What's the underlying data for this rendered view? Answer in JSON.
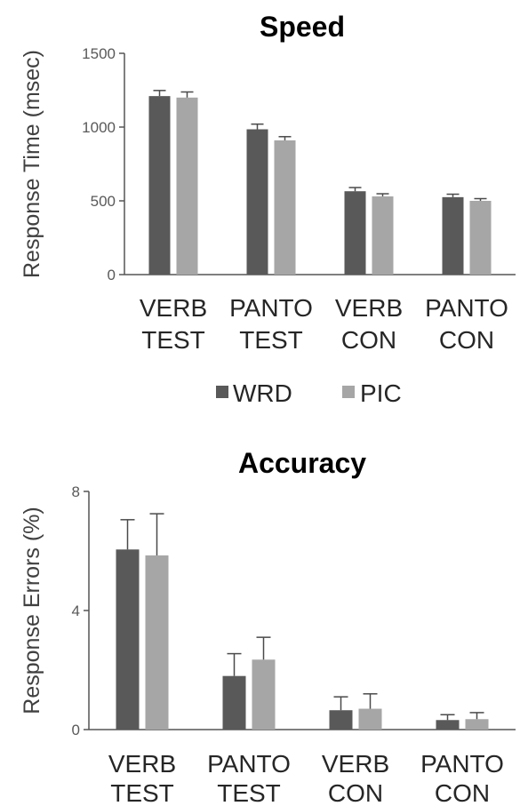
{
  "chart_data": [
    {
      "type": "bar",
      "title": "Speed",
      "ylabel": "Response Time (msec)",
      "xlabel": "",
      "ylim": [
        0,
        1500
      ],
      "yticks": [
        "0",
        "500",
        "1000",
        "1500"
      ],
      "categories": [
        [
          "VERB",
          "TEST"
        ],
        [
          "PANTO",
          "TEST"
        ],
        [
          "VERB",
          "CON"
        ],
        [
          "PANTO",
          "CON"
        ]
      ],
      "series": [
        {
          "name": "WRD",
          "color": "#595959",
          "values": [
            1210,
            985,
            565,
            525
          ],
          "errors": [
            38,
            35,
            25,
            20
          ]
        },
        {
          "name": "PIC",
          "color": "#a6a6a6",
          "values": [
            1200,
            910,
            530,
            500
          ],
          "errors": [
            38,
            25,
            18,
            15
          ]
        }
      ],
      "legend": "bottom",
      "grid": false
    },
    {
      "type": "bar",
      "title": "Accuracy",
      "ylabel": "Response Errors (%)",
      "xlabel": "",
      "ylim": [
        0,
        8
      ],
      "yticks": [
        "0",
        "4",
        "8"
      ],
      "categories": [
        [
          "VERB",
          "TEST"
        ],
        [
          "PANTO",
          "TEST"
        ],
        [
          "VERB",
          "CON"
        ],
        [
          "PANTO",
          "CON"
        ]
      ],
      "series": [
        {
          "name": "WRD",
          "color": "#595959",
          "values": [
            6.05,
            1.8,
            0.65,
            0.32
          ],
          "errors": [
            1.0,
            0.75,
            0.45,
            0.18
          ]
        },
        {
          "name": "PIC",
          "color": "#a6a6a6",
          "values": [
            5.85,
            2.35,
            0.7,
            0.35
          ],
          "errors": [
            1.4,
            0.75,
            0.5,
            0.22
          ]
        }
      ],
      "grid": false
    }
  ]
}
